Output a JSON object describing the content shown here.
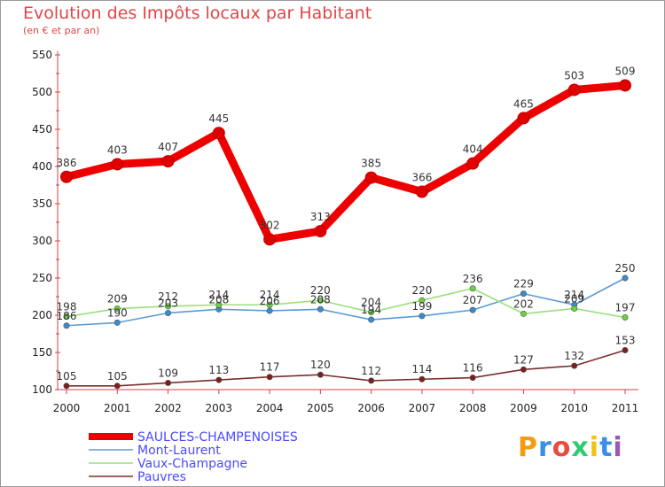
{
  "header": {
    "title": "Evolution des Impôts locaux par Habitant",
    "subtitle": "(en € et par an)"
  },
  "brand": {
    "letters": [
      "P",
      "r",
      "o",
      "x",
      "i",
      "t",
      "i"
    ],
    "colors": [
      "#f39c12",
      "#3a8ee6",
      "#e74c3c",
      "#2ecc71",
      "#f1c40f",
      "#3a8ee6",
      "#9b59b6"
    ]
  },
  "chart_data": {
    "type": "line",
    "title": "Evolution des Impôts locaux par Habitant",
    "subtitle": "(en € et par an)",
    "xlabel": "",
    "ylabel": "",
    "x": [
      "2000",
      "2001",
      "2002",
      "2003",
      "2004",
      "2005",
      "2006",
      "2007",
      "2008",
      "2009",
      "2010",
      "2011"
    ],
    "ylim": [
      100,
      550
    ],
    "yticks": [
      "100",
      "150",
      "200",
      "250",
      "300",
      "350",
      "400",
      "450",
      "500",
      "550"
    ],
    "grid": false,
    "legend_position": "bottom-left",
    "series": [
      {
        "name": "SAULCES-CHAMPENOISES",
        "color": "#ee0000",
        "thick": true,
        "values": [
          386,
          403,
          407,
          445,
          302,
          313,
          385,
          366,
          404,
          465,
          503,
          509
        ],
        "labels": [
          "386",
          "403",
          "407",
          "445",
          "302",
          "313",
          "385",
          "366",
          "404",
          "465",
          "503",
          "509"
        ]
      },
      {
        "name": "Mont-Laurent",
        "color": "#5b9bd5",
        "marker": "#3a8ad0",
        "values": [
          186,
          190,
          203,
          208,
          206,
          208,
          194,
          199,
          207,
          229,
          214,
          250
        ],
        "labels": [
          "186",
          "190",
          "203",
          "208",
          "206",
          "208",
          "194",
          "199",
          "207",
          "229",
          "214",
          "250"
        ]
      },
      {
        "name": "Vaux-Champagne",
        "color": "#99e07a",
        "marker": "#6ad13f",
        "values": [
          198,
          209,
          212,
          214,
          214,
          220,
          204,
          220,
          236,
          202,
          209,
          197
        ],
        "labels": [
          "198",
          "209",
          "212",
          "214",
          "214",
          "220",
          "204",
          "220",
          "236",
          "202",
          "209",
          "197"
        ]
      },
      {
        "name": "Pauvres",
        "color": "#7a2e2e",
        "marker": "#7a1e1e",
        "values": [
          105,
          105,
          109,
          113,
          117,
          120,
          112,
          114,
          116,
          127,
          132,
          153
        ],
        "labels": [
          "105",
          "105",
          "109",
          "113",
          "117",
          "120",
          "112",
          "114",
          "116",
          "127",
          "132",
          "153"
        ]
      }
    ]
  }
}
